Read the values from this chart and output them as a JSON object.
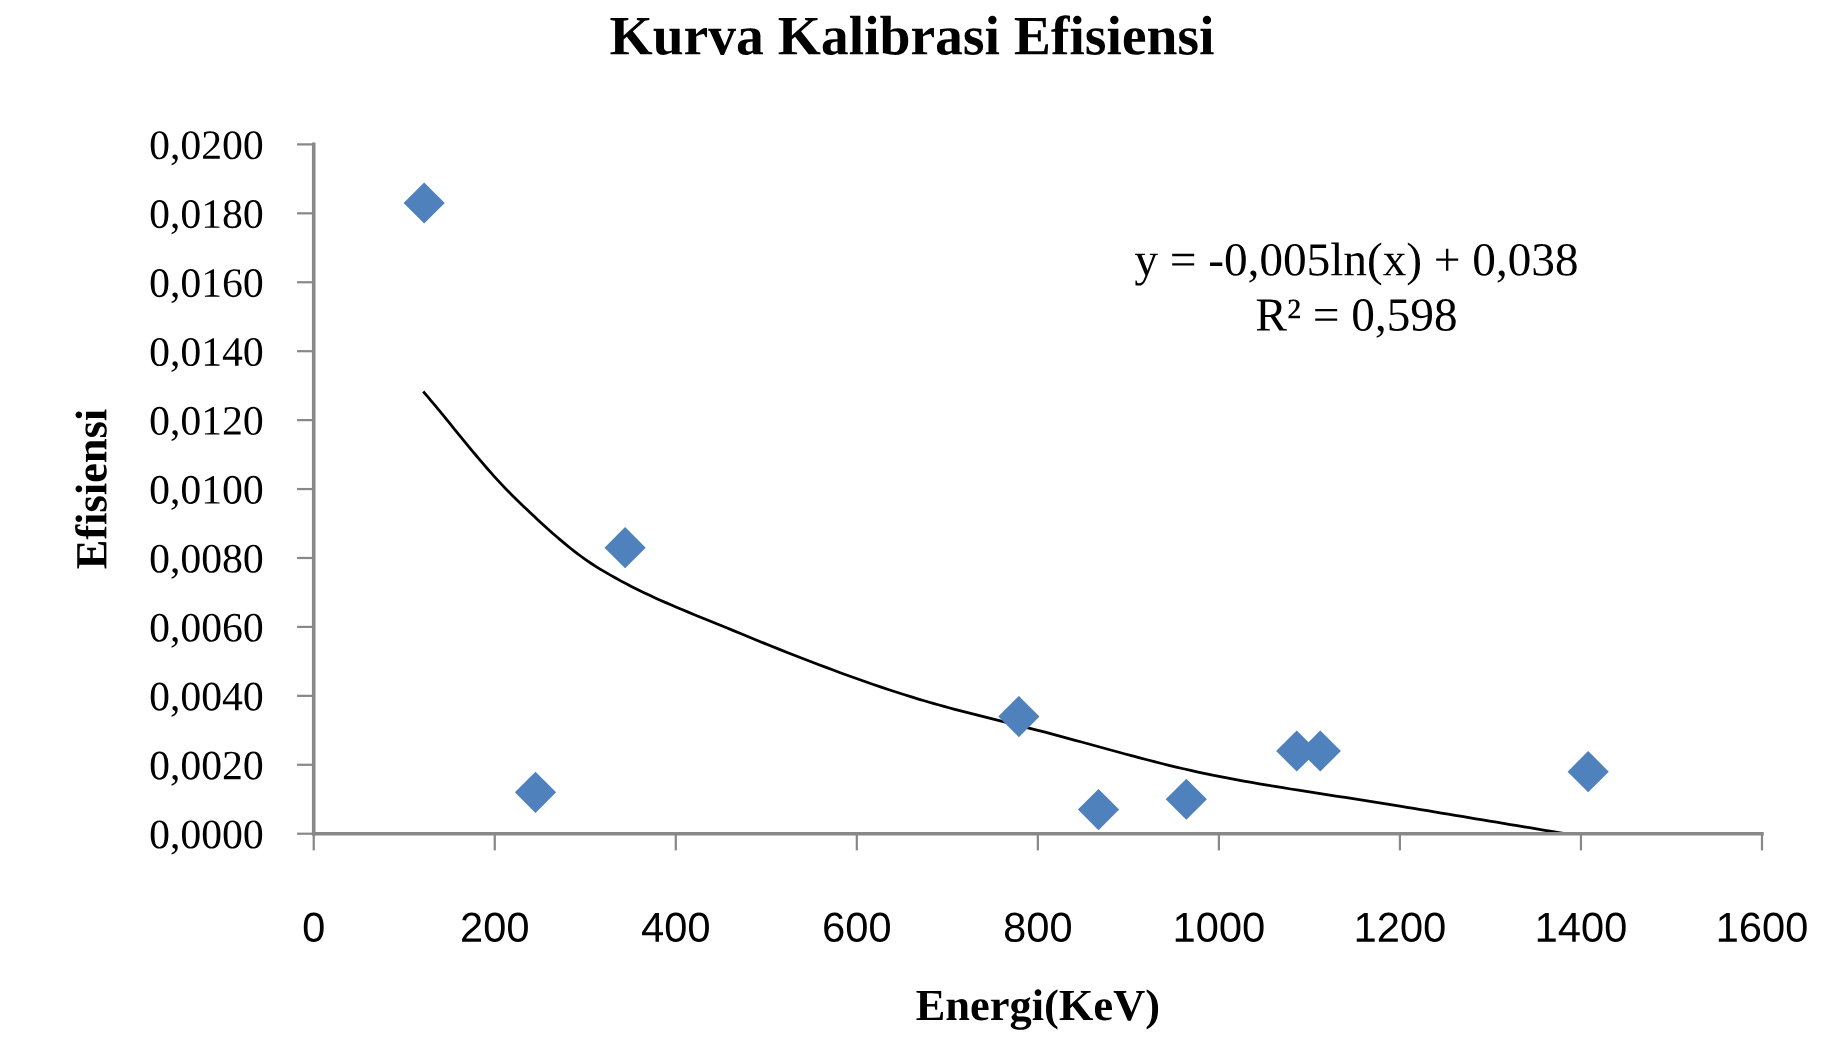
{
  "chart_data": {
    "type": "scatter",
    "title": "Kurva Kalibrasi Efisiensi",
    "xlabel": "Energi(KeV)",
    "ylabel": "Efisiensi",
    "annotations": [
      "y = -0,005ln(x) + 0,038",
      "R² = 0,598"
    ],
    "grid": false,
    "legend": false,
    "xlim": [
      0,
      1600
    ],
    "xticks": [
      0,
      200,
      400,
      600,
      800,
      1000,
      1200,
      1400,
      1600
    ],
    "ylim": [
      0,
      0.02
    ],
    "yticks": [
      {
        "value": 0,
        "label": "0,0000"
      },
      {
        "value": 0.002,
        "label": "0,0020"
      },
      {
        "value": 0.004,
        "label": "0,0040"
      },
      {
        "value": 0.006,
        "label": "0,0060"
      },
      {
        "value": 0.008,
        "label": "0,0080"
      },
      {
        "value": 0.01,
        "label": "0,0100"
      },
      {
        "value": 0.012,
        "label": "0,0120"
      },
      {
        "value": 0.014,
        "label": "0,0140"
      },
      {
        "value": 0.016,
        "label": "0,0160"
      },
      {
        "value": 0.018,
        "label": "0,0180"
      },
      {
        "value": 0.02,
        "label": "0,0200"
      }
    ],
    "series": [
      {
        "color": "#4f81bd",
        "marker": "diamond",
        "x": [
          122,
          245,
          344,
          779,
          867,
          964,
          1086,
          1112,
          1408
        ],
        "values": [
          0.0183,
          0.0012,
          0.0083,
          0.0034,
          0.0007,
          0.001,
          0.0024,
          0.0024,
          0.0018
        ]
      },
      {
        "type": "line",
        "color": "#000000",
        "line_style": "solid",
        "x": [
          122,
          220,
          315,
          463,
          669,
          800,
          993,
          1200,
          1383
        ],
        "values": [
          0.0128,
          0.0098,
          0.0077,
          0.0059,
          0.0039,
          0.003,
          0.0017,
          0.0008,
          0.0
        ]
      }
    ]
  }
}
